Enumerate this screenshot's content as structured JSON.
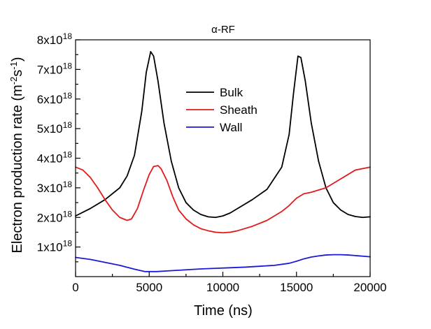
{
  "chart_data": {
    "type": "line",
    "title": "α-RF",
    "xlabel": "Time (ns)",
    "ylabel": "Electron production rate (m-2s-1)",
    "ylabel_parts": {
      "main": "Electron production rate (m",
      "sup1": "-2",
      "mid": "s",
      "sup2": "-1",
      "end": ")"
    },
    "xlim": [
      0,
      20000
    ],
    "ylim": [
      0,
      8e+18
    ],
    "x_ticks": [
      0,
      5000,
      10000,
      15000,
      20000
    ],
    "x_tick_labels": [
      "0",
      "5000",
      "10000",
      "15000",
      "20000"
    ],
    "y_ticks": [
      1e+18,
      2e+18,
      3e+18,
      4e+18,
      5e+18,
      6e+18,
      7e+18,
      8e+18
    ],
    "y_tick_labels": [
      {
        "base": "1x10",
        "exp": "18"
      },
      {
        "base": "2x10",
        "exp": "18"
      },
      {
        "base": "3x10",
        "exp": "18"
      },
      {
        "base": "4x10",
        "exp": "18"
      },
      {
        "base": "5x10",
        "exp": "18"
      },
      {
        "base": "6x10",
        "exp": "18"
      },
      {
        "base": "7x10",
        "exp": "18"
      },
      {
        "base": "8x10",
        "exp": "18"
      }
    ],
    "legend_position": "center",
    "series": [
      {
        "name": "Bulk",
        "color": "#000000",
        "x": [
          0,
          1000,
          2000,
          3000,
          3500,
          4000,
          4500,
          4800,
          5100,
          5300,
          5600,
          6000,
          6500,
          7000,
          7500,
          8000,
          8500,
          9000,
          9500,
          10000,
          10500,
          11000,
          12000,
          13000,
          14000,
          14500,
          14800,
          15100,
          15300,
          15600,
          16000,
          16500,
          17000,
          17500,
          18000,
          18500,
          19000,
          19500,
          20000
        ],
        "y": [
          2.05e+18,
          2.3e+18,
          2.6e+18,
          3e+18,
          3.4e+18,
          4.1e+18,
          5.6e+18,
          6.9e+18,
          7.6e+18,
          7.45e+18,
          6.6e+18,
          5.2e+18,
          3.9e+18,
          3e+18,
          2.5e+18,
          2.25e+18,
          2.1e+18,
          2.02e+18,
          2e+18,
          2.05e+18,
          2.15e+18,
          2.3e+18,
          2.6e+18,
          2.95e+18,
          3.7e+18,
          4.8e+18,
          6.2e+18,
          7.45e+18,
          7.4e+18,
          6.6e+18,
          5.2e+18,
          3.9e+18,
          3e+18,
          2.5e+18,
          2.25e+18,
          2.1e+18,
          2.03e+18,
          2e+18,
          2.02e+18
        ]
      },
      {
        "name": "Sheath",
        "color": "#e21a1a",
        "x": [
          0,
          500,
          1000,
          1500,
          2000,
          2500,
          3000,
          3500,
          3800,
          4200,
          4600,
          5000,
          5300,
          5600,
          5800,
          6200,
          6600,
          7000,
          7500,
          8000,
          8500,
          9000,
          9500,
          10000,
          10500,
          11000,
          12000,
          13000,
          14000,
          14500,
          15000,
          15500,
          16000,
          17000,
          18000,
          19000,
          20000
        ],
        "y": [
          3.7e+18,
          3.6e+18,
          3.35e+18,
          3e+18,
          2.6e+18,
          2.25e+18,
          2e+18,
          1.9e+18,
          1.95e+18,
          2.3e+18,
          2.9e+18,
          3.45e+18,
          3.72e+18,
          3.75e+18,
          3.65e+18,
          3.25e+18,
          2.7e+18,
          2.25e+18,
          1.95e+18,
          1.75e+18,
          1.62e+18,
          1.55e+18,
          1.5e+18,
          1.48e+18,
          1.5e+18,
          1.55e+18,
          1.7e+18,
          1.9e+18,
          2.2e+18,
          2.4e+18,
          2.65e+18,
          2.8e+18,
          2.85e+18,
          3e+18,
          3.3e+18,
          3.6e+18,
          3.7e+18
        ]
      },
      {
        "name": "Wall",
        "color": "#1a1ad6",
        "x": [
          0,
          1000,
          2000,
          3000,
          4000,
          4700,
          5500,
          6500,
          7500,
          8500,
          9500,
          10500,
          11500,
          12500,
          13500,
          14500,
          15000,
          15500,
          16000,
          16500,
          17000,
          17500,
          18000,
          18500,
          19000,
          19500,
          20000
        ],
        "y": [
          6.5e+17,
          5.8e+17,
          4.8e+17,
          3.8e+17,
          2.5e+17,
          1.7e+17,
          1.7e+17,
          2e+17,
          2.3e+17,
          2.6e+17,
          2.8e+17,
          3e+17,
          3.2e+17,
          3.5e+17,
          3.8e+17,
          4.5e+17,
          5.2e+17,
          6e+17,
          6.6e+17,
          7e+17,
          7.3e+17,
          7.4e+17,
          7.4e+17,
          7.3e+17,
          7.1e+17,
          6.9e+17,
          6.7e+17
        ]
      }
    ]
  }
}
